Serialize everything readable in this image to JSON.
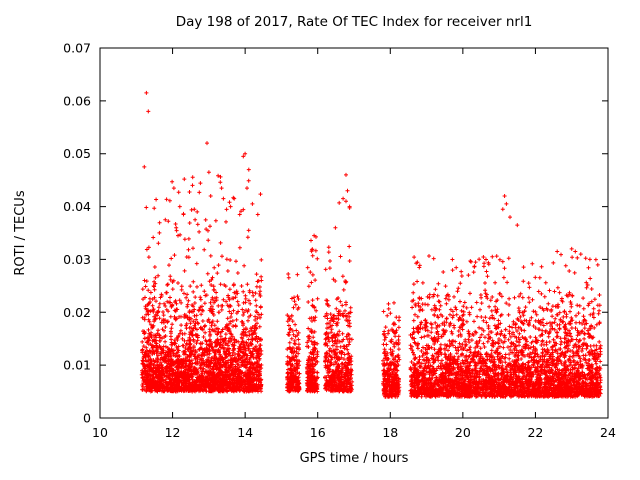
{
  "title": "Day 198 of 2017, Rate Of TEC Index for receiver nrl1",
  "chart_data": {
    "type": "scatter",
    "title": "Day 198 of 2017, Rate Of TEC Index for receiver nrl1",
    "xlabel": "GPS time / hours",
    "ylabel": "ROTI / TECUs",
    "xlim": [
      10,
      24
    ],
    "ylim": [
      0,
      0.07
    ],
    "xticks": [
      10,
      12,
      14,
      16,
      18,
      20,
      22,
      24
    ],
    "yticks": [
      0,
      0.01,
      0.02,
      0.03,
      0.04,
      0.05,
      0.06,
      0.07
    ],
    "grid": false,
    "legend": "none",
    "marker": "plus",
    "marker_color": "#ff0000",
    "axis_color": "#000000",
    "background_color": "#ffffff",
    "description": "Dense scatter of 30-second ROTI values vs GPS time; data spans ~11.1h to ~23.8h with gaps near 14.5-15.1h and 17.0-17.8h; bulk of points lie between 0.005 and 0.022 TECU with sporadic spikes up to 0.062.",
    "clusters": [
      {
        "x0": 11.15,
        "x1": 14.45,
        "n": 2600,
        "y0": 0.005,
        "scale": 0.0055,
        "bodyMax": 0.027,
        "tailFrac": 0.06,
        "tailMin": 0.02,
        "tailMax": 0.046
      },
      {
        "x0": 15.15,
        "x1": 15.5,
        "n": 240,
        "y0": 0.005,
        "scale": 0.005,
        "bodyMax": 0.024,
        "tailFrac": 0.04,
        "tailMin": 0.018,
        "tailMax": 0.028
      },
      {
        "x0": 15.7,
        "x1": 16.0,
        "n": 240,
        "y0": 0.005,
        "scale": 0.005,
        "bodyMax": 0.024,
        "tailFrac": 0.05,
        "tailMin": 0.018,
        "tailMax": 0.035
      },
      {
        "x0": 16.2,
        "x1": 16.95,
        "n": 520,
        "y0": 0.005,
        "scale": 0.0055,
        "bodyMax": 0.026,
        "tailFrac": 0.06,
        "tailMin": 0.019,
        "tailMax": 0.041
      },
      {
        "x0": 17.8,
        "x1": 18.25,
        "n": 320,
        "y0": 0.004,
        "scale": 0.005,
        "bodyMax": 0.022,
        "tailFrac": 0.03,
        "tailMin": 0.016,
        "tailMax": 0.022
      },
      {
        "x0": 18.55,
        "x1": 23.8,
        "n": 3600,
        "y0": 0.004,
        "scale": 0.005,
        "bodyMax": 0.024,
        "tailFrac": 0.05,
        "tailMin": 0.017,
        "tailMax": 0.031
      }
    ],
    "outliers": [
      [
        11.22,
        0.0475
      ],
      [
        11.28,
        0.0615
      ],
      [
        11.33,
        0.058
      ],
      [
        11.8,
        0.0375
      ],
      [
        12.1,
        0.036
      ],
      [
        12.15,
        0.0345
      ],
      [
        12.3,
        0.0385
      ],
      [
        12.55,
        0.044
      ],
      [
        12.6,
        0.0395
      ],
      [
        12.62,
        0.0375
      ],
      [
        12.68,
        0.039
      ],
      [
        12.95,
        0.052
      ],
      [
        13.0,
        0.0465
      ],
      [
        13.05,
        0.042
      ],
      [
        13.35,
        0.0435
      ],
      [
        13.4,
        0.0415
      ],
      [
        13.6,
        0.04
      ],
      [
        13.85,
        0.0385
      ],
      [
        13.95,
        0.0495
      ],
      [
        14.0,
        0.05
      ],
      [
        14.05,
        0.0435
      ],
      [
        14.1,
        0.047
      ],
      [
        14.2,
        0.0405
      ],
      [
        14.35,
        0.0385
      ],
      [
        15.9,
        0.0345
      ],
      [
        16.7,
        0.0415
      ],
      [
        16.78,
        0.046
      ],
      [
        16.82,
        0.043
      ],
      [
        16.88,
        0.04
      ],
      [
        20.35,
        0.0295
      ],
      [
        21.1,
        0.0395
      ],
      [
        21.15,
        0.042
      ],
      [
        21.2,
        0.0405
      ],
      [
        21.3,
        0.038
      ],
      [
        21.5,
        0.0365
      ],
      [
        22.6,
        0.0315
      ],
      [
        23.0,
        0.032
      ],
      [
        23.1,
        0.0315
      ],
      [
        23.25,
        0.031
      ],
      [
        23.5,
        0.03
      ]
    ]
  }
}
